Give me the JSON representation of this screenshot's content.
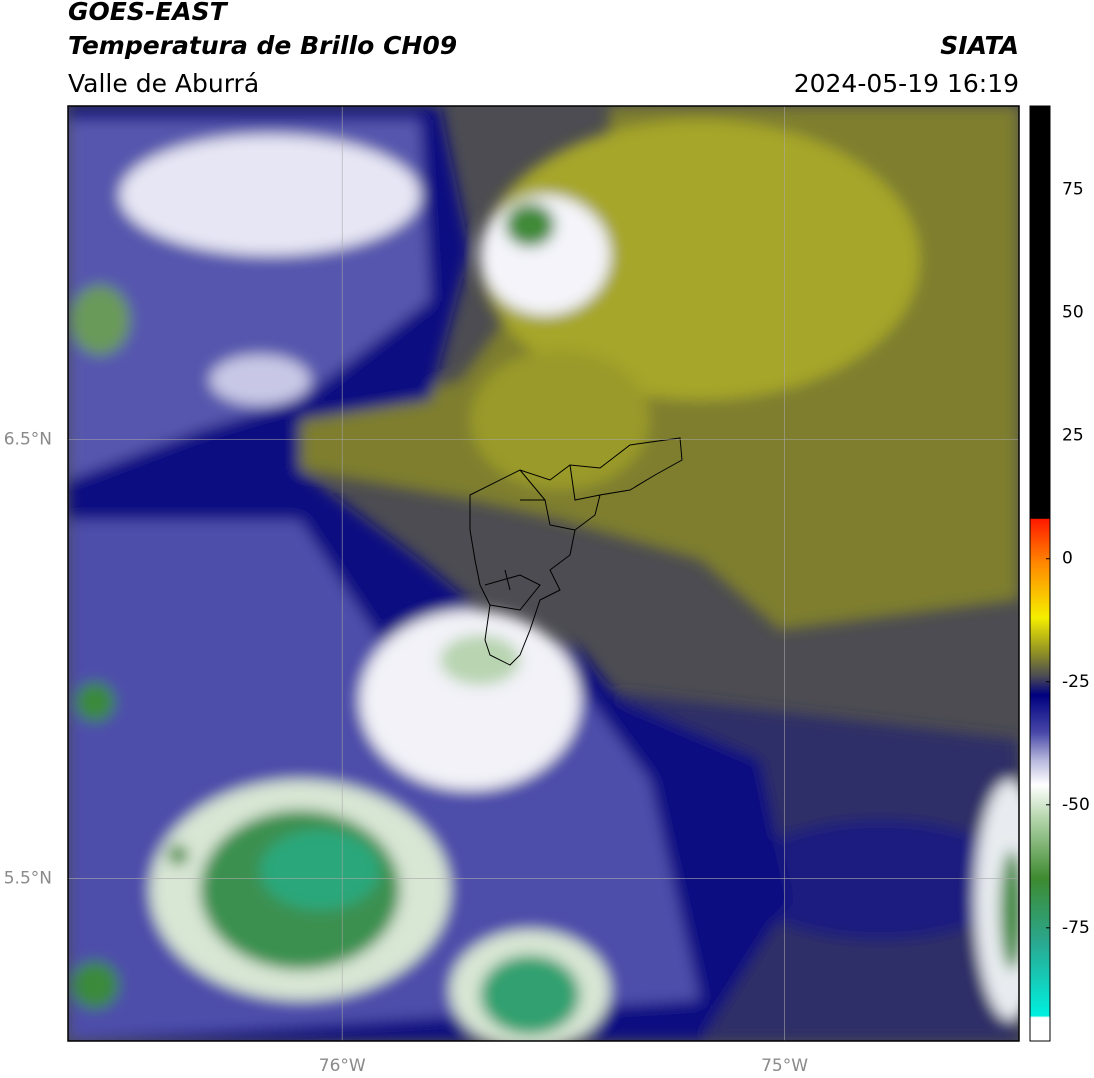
{
  "header": {
    "title": "GOES-EAST",
    "subtitle": "Temperatura de Brillo CH09",
    "region": "Valle de Aburrá",
    "source": "SIATA",
    "datetime": "2024-05-19 16:19"
  },
  "map": {
    "xlim": [
      -76.62,
      -74.47
    ],
    "ylim": [
      5.13,
      7.26
    ],
    "xticks": [
      {
        "value": -76,
        "label": "76°W"
      },
      {
        "value": -75,
        "label": "75°W"
      }
    ],
    "yticks": [
      {
        "value": 6.5,
        "label": "6.5°N"
      },
      {
        "value": 5.5,
        "label": "5.5°N"
      }
    ],
    "grid": true
  },
  "colorbar": {
    "lim": [
      -98,
      92
    ],
    "ticks": [
      75,
      50,
      25,
      0,
      -25,
      -50,
      -75
    ]
  }
}
